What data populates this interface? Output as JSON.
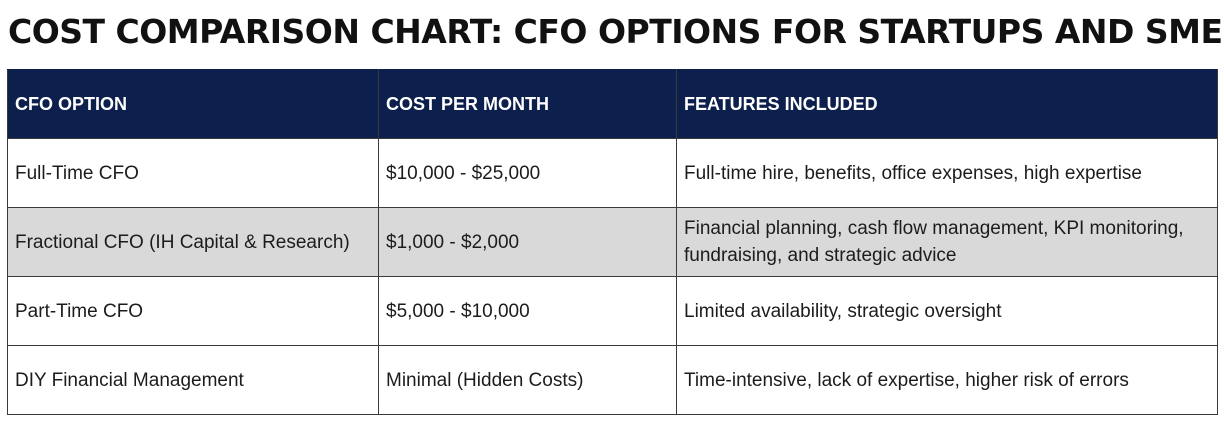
{
  "title": "COST COMPARISON CHART: CFO OPTIONS FOR STARTUPS AND SMES",
  "chart_data": {
    "type": "table",
    "title": "COST COMPARISON CHART: CFO OPTIONS FOR STARTUPS AND SMES",
    "columns": [
      "CFO OPTION",
      "COST PER MONTH",
      "FEATURES INCLUDED"
    ],
    "rows": [
      {
        "option": "Full-Time CFO",
        "cost": "$10,000 - $25,000",
        "features": "Full-time hire, benefits, office expenses, high expertise"
      },
      {
        "option": "Fractional CFO (IH Capital & Research)",
        "cost": "$1,000 - $2,000",
        "features": "Financial planning, cash flow management, KPI monitoring, fundraising, and strategic advice"
      },
      {
        "option": "Part-Time CFO",
        "cost": "$5,000 - $10,000",
        "features": "Limited availability, strategic oversight"
      },
      {
        "option": "DIY Financial Management",
        "cost": "Minimal (Hidden Costs)",
        "features": "Time-intensive, lack of expertise, higher risk of errors"
      }
    ]
  },
  "colors": {
    "header_bg": "#0d1f4d",
    "header_text": "#ffffff",
    "alt_row_bg": "#d9d9d9",
    "row_bg": "#ffffff",
    "border": "#3a3a3a"
  }
}
